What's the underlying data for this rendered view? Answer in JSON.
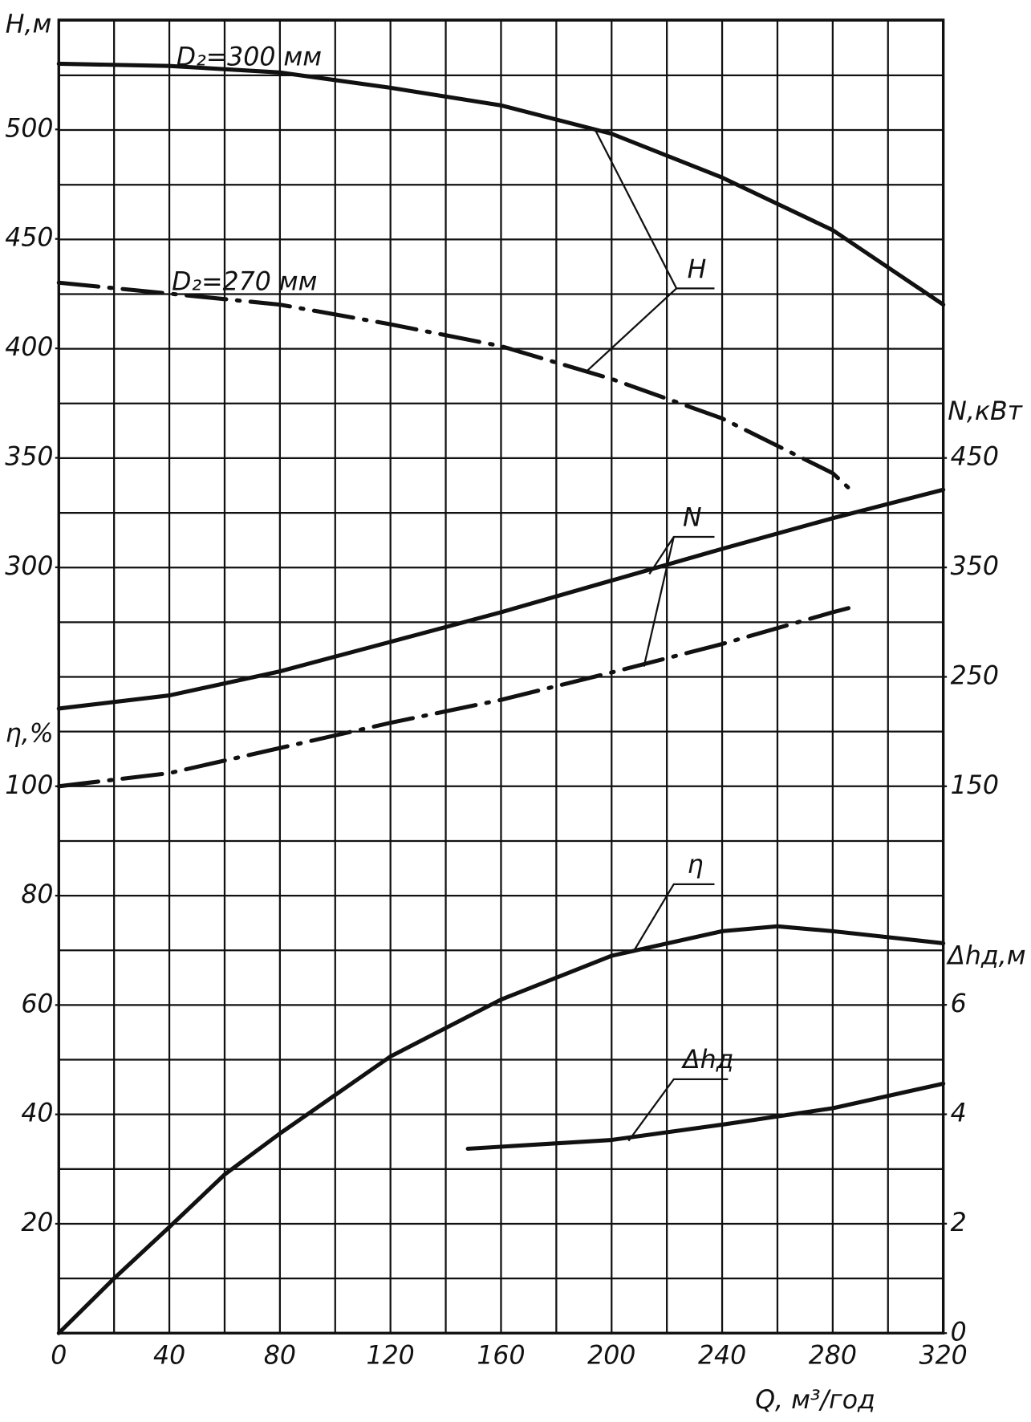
{
  "chart_data": {
    "type": "line",
    "x_label": "Q, м³/год",
    "y_label": "H,м",
    "y2_label": "N,кВт",
    "y3_label": "η,%",
    "y4_label": "Δhд,м",
    "xlim": [
      0,
      320
    ],
    "xticks": [
      0,
      40,
      80,
      120,
      160,
      200,
      240,
      280,
      320
    ],
    "ylim": [
      200,
      550
    ],
    "yticks": [
      300,
      350,
      400,
      450,
      500
    ],
    "y2lim": [
      150,
      450
    ],
    "y2ticks": [
      150,
      250,
      350,
      450
    ],
    "y3lim": [
      0,
      100
    ],
    "y3ticks": [
      20,
      40,
      60,
      80,
      100
    ],
    "y4lim": [
      0,
      6
    ],
    "y4ticks": [
      0,
      2,
      4,
      6
    ],
    "grid": true,
    "curve_labels": [
      "H",
      "N",
      "η",
      "Δhд"
    ],
    "series": [
      {
        "name": "D₂=300 мм",
        "axis": "y",
        "dash": false,
        "color": "#111111",
        "x": [
          0,
          40,
          80,
          120,
          160,
          200,
          240,
          280,
          320
        ],
        "values": [
          530,
          529,
          526,
          519,
          511,
          498,
          478,
          454,
          420
        ]
      },
      {
        "name": "D₂=270 мм",
        "axis": "y",
        "dash": true,
        "color": "#111111",
        "x": [
          0,
          40,
          80,
          120,
          160,
          200,
          240,
          280,
          286
        ],
        "values": [
          430,
          425,
          420,
          411,
          401,
          386,
          368,
          343,
          336
        ]
      },
      {
        "axis": "y2",
        "dash": false,
        "color": "#111111",
        "x": [
          0,
          40,
          80,
          120,
          160,
          200,
          240,
          280,
          320
        ],
        "values": [
          221,
          233,
          255,
          282,
          309,
          338,
          367,
          395,
          421
        ]
      },
      {
        "axis": "y2",
        "dash": true,
        "color": "#111111",
        "x": [
          0,
          40,
          80,
          120,
          160,
          200,
          240,
          280,
          286
        ],
        "values": [
          150,
          162,
          185,
          208,
          229,
          254,
          280,
          309,
          313
        ]
      },
      {
        "axis": "y3",
        "dash": false,
        "color": "#111111",
        "x": [
          0,
          20,
          40,
          60,
          80,
          120,
          160,
          200,
          240,
          260,
          280,
          320
        ],
        "values": [
          0,
          10,
          19.4,
          29,
          36.5,
          50.6,
          61,
          69,
          73.5,
          74.4,
          73.5,
          71.3
        ]
      },
      {
        "axis": "y4",
        "dash": false,
        "color": "#111111",
        "x": [
          148,
          200,
          240,
          280,
          320
        ],
        "values": [
          3.37,
          3.53,
          3.81,
          4.11,
          4.56
        ]
      }
    ]
  }
}
